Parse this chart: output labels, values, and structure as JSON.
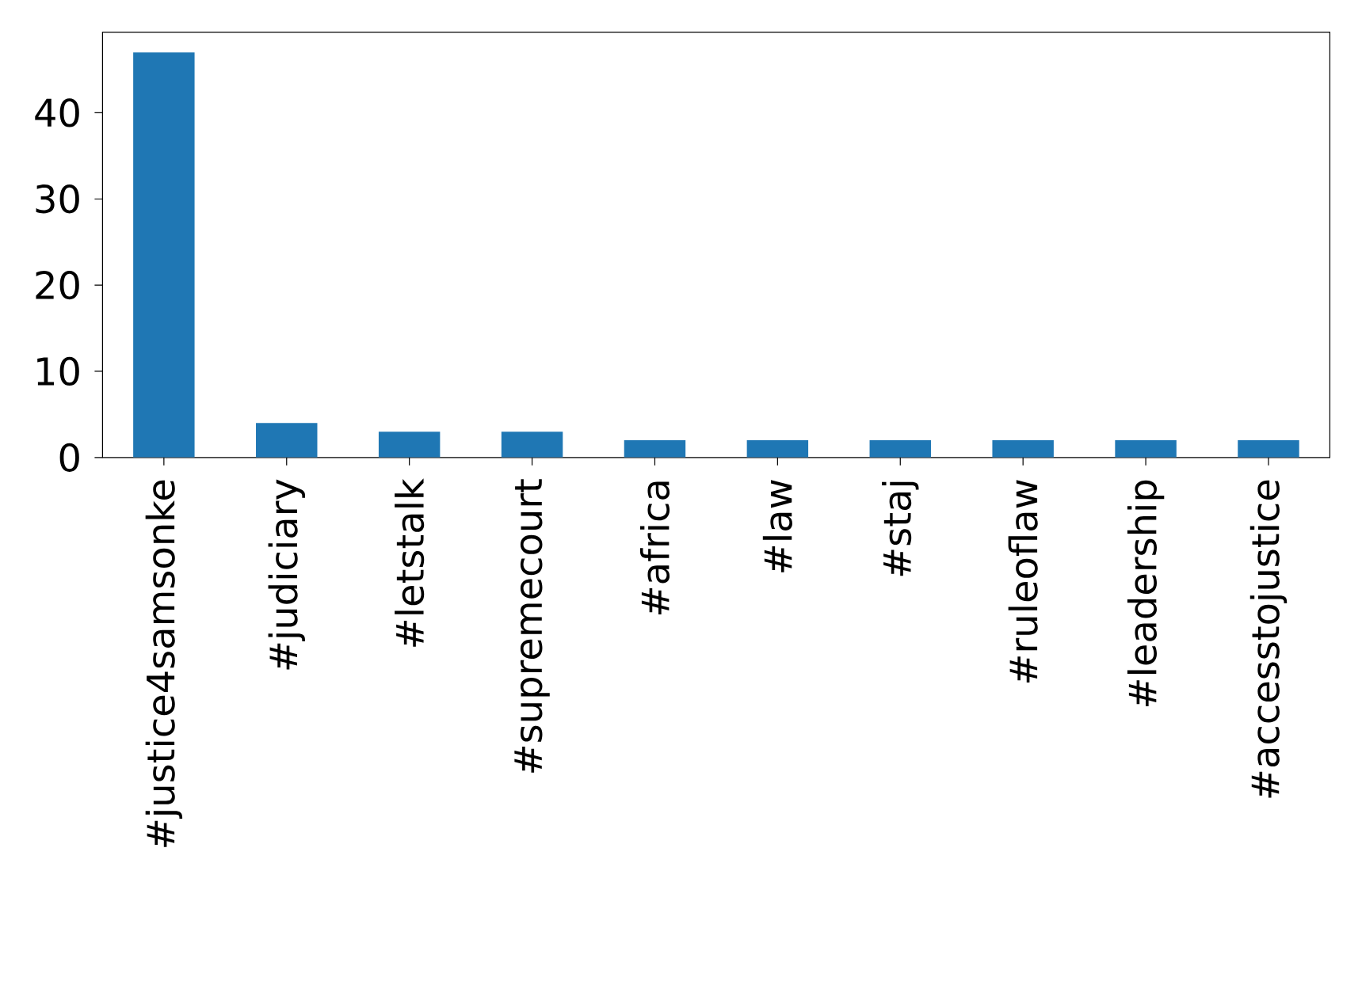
{
  "chart_data": {
    "type": "bar",
    "categories": [
      "#justice4samsonke",
      "#judiciary",
      "#letstalk",
      "#supremecourt",
      "#africa",
      "#law",
      "#staj",
      "#ruleoflaw",
      "#leadership",
      "#accesstojustice"
    ],
    "values": [
      47,
      4,
      3,
      3,
      2,
      2,
      2,
      2,
      2,
      2
    ],
    "color": "#1f77b4",
    "ylim": [
      0,
      49.35
    ],
    "yticks": [
      0,
      10,
      20,
      30,
      40
    ]
  }
}
